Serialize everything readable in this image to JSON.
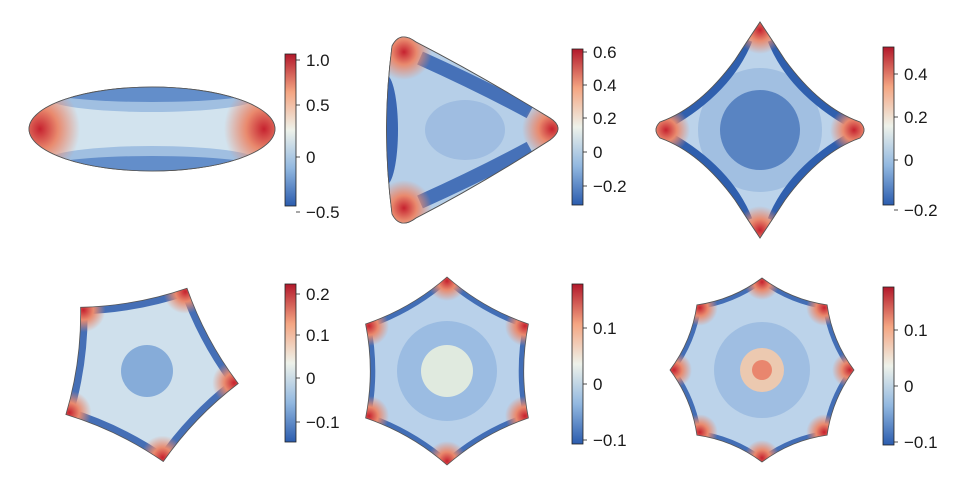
{
  "panels": [
    {
      "id": "ellipse",
      "colorbar": {
        "ticks": [
          "1.0",
          "0.5",
          "0",
          "−0.5"
        ]
      }
    },
    {
      "id": "triangle",
      "colorbar": {
        "ticks": [
          "0.6",
          "0.4",
          "0.2",
          "0",
          "−0.2"
        ]
      }
    },
    {
      "id": "square",
      "colorbar": {
        "ticks": [
          "0.4",
          "0.2",
          "0",
          "−0.2"
        ]
      }
    },
    {
      "id": "pentagon",
      "colorbar": {
        "ticks": [
          "0.2",
          "0.1",
          "0",
          "−0.1"
        ]
      }
    },
    {
      "id": "hexagon",
      "colorbar": {
        "ticks": [
          "0.1",
          "0",
          "−0.1"
        ]
      }
    },
    {
      "id": "octagon",
      "colorbar": {
        "ticks": [
          "0.1",
          "0",
          "−0.1"
        ]
      }
    }
  ],
  "colors": {
    "high": "#b2182b",
    "mid_high": "#f4a582",
    "mid": "#eaf1ea",
    "mid_low": "#8ab2de",
    "low": "#2b5cae"
  }
}
